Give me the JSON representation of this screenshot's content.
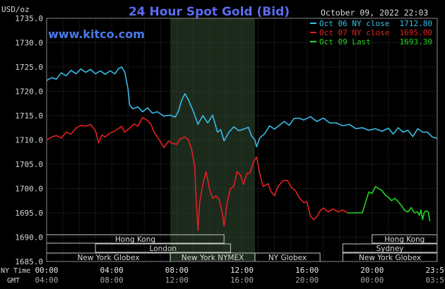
{
  "chart_data": {
    "type": "line",
    "title": "24 Hour Spot Gold (Bid)",
    "unit_label": "USD/oz",
    "timestamp": "October 09, 2022 22:03",
    "watermark": "www.kitco.com",
    "y_ticks": [
      "1735.0",
      "1730.0",
      "1725.0",
      "1720.0",
      "1715.0",
      "1710.0",
      "1705.0",
      "1700.0",
      "1695.0",
      "1690.0",
      "1685.0"
    ],
    "ylim": [
      1685,
      1735
    ],
    "xlim": [
      0,
      24
    ],
    "x_ticks_ny": [
      "00:00",
      "04:00",
      "08:00",
      "12:00",
      "16:00",
      "20:00",
      "23:59"
    ],
    "x_ticks_gmt": [
      "04:00",
      "08:00",
      "12:00",
      "16:00",
      "20:00",
      "00:00",
      "03:59"
    ],
    "x_row_label_ny": "NY Time",
    "x_row_label_gmt": "GMT",
    "shaded_region": [
      7.6,
      12.8
    ],
    "legend": [
      {
        "name": "Oct 06 NY close",
        "value": "1712.80",
        "color": "#38bce8"
      },
      {
        "name": "Oct 07 NY close",
        "value": "1695.00",
        "color": "#e02020"
      },
      {
        "name": "Oct 09 Last",
        "value": "1693.30",
        "color": "#22d622"
      }
    ],
    "series": [
      {
        "name": "Oct 06 NY close",
        "color": "#38bce8",
        "points": [
          [
            0,
            1722.2
          ],
          [
            0.3,
            1722.8
          ],
          [
            0.6,
            1722.5
          ],
          [
            0.9,
            1723.8
          ],
          [
            1.2,
            1723.2
          ],
          [
            1.5,
            1724.3
          ],
          [
            1.8,
            1723.6
          ],
          [
            2.1,
            1724.6
          ],
          [
            2.4,
            1723.9
          ],
          [
            2.7,
            1724.5
          ],
          [
            3.0,
            1723.6
          ],
          [
            3.3,
            1724.2
          ],
          [
            3.6,
            1723.5
          ],
          [
            3.9,
            1724.2
          ],
          [
            4.2,
            1723.6
          ],
          [
            4.4,
            1724.6
          ],
          [
            4.6,
            1725.0
          ],
          [
            4.8,
            1724.0
          ],
          [
            5.0,
            1720.5
          ],
          [
            5.1,
            1717.2
          ],
          [
            5.3,
            1716.4
          ],
          [
            5.6,
            1716.8
          ],
          [
            5.9,
            1715.8
          ],
          [
            6.2,
            1716.6
          ],
          [
            6.5,
            1715.5
          ],
          [
            6.8,
            1715.8
          ],
          [
            7.2,
            1714.9
          ],
          [
            7.6,
            1715.1
          ],
          [
            7.9,
            1714.7
          ],
          [
            8.1,
            1715.9
          ],
          [
            8.3,
            1718.2
          ],
          [
            8.5,
            1719.5
          ],
          [
            8.7,
            1718.3
          ],
          [
            9.0,
            1716.0
          ],
          [
            9.3,
            1713.2
          ],
          [
            9.6,
            1715.0
          ],
          [
            9.9,
            1713.5
          ],
          [
            10.2,
            1715.1
          ],
          [
            10.5,
            1711.6
          ],
          [
            10.7,
            1712.1
          ],
          [
            10.9,
            1709.8
          ],
          [
            11.2,
            1711.6
          ],
          [
            11.5,
            1712.7
          ],
          [
            11.8,
            1711.9
          ],
          [
            12.1,
            1712.2
          ],
          [
            12.4,
            1712.6
          ],
          [
            12.6,
            1710.8
          ],
          [
            12.8,
            1710.0
          ],
          [
            12.9,
            1708.6
          ],
          [
            13.1,
            1710.4
          ],
          [
            13.4,
            1711.3
          ],
          [
            13.7,
            1712.9
          ],
          [
            14.0,
            1712.2
          ],
          [
            14.3,
            1713.0
          ],
          [
            14.6,
            1713.8
          ],
          [
            14.9,
            1713.0
          ],
          [
            15.2,
            1714.4
          ],
          [
            15.5,
            1714.5
          ],
          [
            15.8,
            1714.1
          ],
          [
            16.2,
            1714.8
          ],
          [
            16.6,
            1713.8
          ],
          [
            17.0,
            1714.5
          ],
          [
            17.4,
            1713.5
          ],
          [
            17.8,
            1713.5
          ],
          [
            18.2,
            1712.9
          ],
          [
            18.6,
            1713.2
          ],
          [
            19.0,
            1712.3
          ],
          [
            19.4,
            1712.5
          ],
          [
            19.8,
            1712.0
          ],
          [
            20.2,
            1712.3
          ],
          [
            20.6,
            1711.8
          ],
          [
            21.0,
            1712.4
          ],
          [
            21.3,
            1711.2
          ],
          [
            21.6,
            1712.5
          ],
          [
            21.9,
            1711.6
          ],
          [
            22.2,
            1712.0
          ],
          [
            22.5,
            1710.7
          ],
          [
            22.8,
            1712.3
          ],
          [
            23.1,
            1711.6
          ],
          [
            23.4,
            1711.6
          ],
          [
            23.7,
            1710.6
          ],
          [
            23.99,
            1710.3
          ]
        ]
      },
      {
        "name": "Oct 07 NY close",
        "color": "#e02020",
        "points": [
          [
            0,
            1710.0
          ],
          [
            0.3,
            1710.6
          ],
          [
            0.6,
            1710.9
          ],
          [
            0.9,
            1710.4
          ],
          [
            1.2,
            1711.6
          ],
          [
            1.5,
            1711.2
          ],
          [
            1.8,
            1712.4
          ],
          [
            2.1,
            1713.0
          ],
          [
            2.4,
            1712.8
          ],
          [
            2.7,
            1713.2
          ],
          [
            3.0,
            1711.9
          ],
          [
            3.2,
            1709.4
          ],
          [
            3.4,
            1711.0
          ],
          [
            3.6,
            1710.6
          ],
          [
            3.8,
            1711.2
          ],
          [
            4.1,
            1711.7
          ],
          [
            4.4,
            1712.3
          ],
          [
            4.6,
            1712.8
          ],
          [
            4.8,
            1711.6
          ],
          [
            5.1,
            1712.4
          ],
          [
            5.4,
            1713.3
          ],
          [
            5.6,
            1712.8
          ],
          [
            5.9,
            1714.6
          ],
          [
            6.1,
            1714.2
          ],
          [
            6.4,
            1713.3
          ],
          [
            6.6,
            1711.6
          ],
          [
            6.8,
            1710.6
          ],
          [
            7.0,
            1709.6
          ],
          [
            7.2,
            1708.4
          ],
          [
            7.5,
            1709.8
          ],
          [
            7.7,
            1709.3
          ],
          [
            8.0,
            1709.1
          ],
          [
            8.2,
            1710.2
          ],
          [
            8.5,
            1710.6
          ],
          [
            8.7,
            1710.1
          ],
          [
            8.9,
            1708.2
          ],
          [
            9.1,
            1704.5
          ],
          [
            9.2,
            1697.0
          ],
          [
            9.3,
            1691.4
          ],
          [
            9.4,
            1697.0
          ],
          [
            9.6,
            1701.0
          ],
          [
            9.8,
            1703.5
          ],
          [
            10.0,
            1700.0
          ],
          [
            10.2,
            1698.0
          ],
          [
            10.4,
            1698.5
          ],
          [
            10.6,
            1697.8
          ],
          [
            10.8,
            1694.9
          ],
          [
            10.9,
            1692.3
          ],
          [
            11.1,
            1697.3
          ],
          [
            11.3,
            1700.0
          ],
          [
            11.5,
            1700.5
          ],
          [
            11.7,
            1703.5
          ],
          [
            11.9,
            1702.8
          ],
          [
            12.1,
            1700.9
          ],
          [
            12.3,
            1703.1
          ],
          [
            12.5,
            1703.2
          ],
          [
            12.7,
            1705.4
          ],
          [
            12.9,
            1706.5
          ],
          [
            13.1,
            1703.0
          ],
          [
            13.3,
            1700.4
          ],
          [
            13.6,
            1701.0
          ],
          [
            13.8,
            1699.3
          ],
          [
            14.0,
            1698.5
          ],
          [
            14.2,
            1700.3
          ],
          [
            14.5,
            1701.6
          ],
          [
            14.8,
            1701.7
          ],
          [
            15.0,
            1700.4
          ],
          [
            15.3,
            1699.5
          ],
          [
            15.5,
            1698.2
          ],
          [
            15.8,
            1697.1
          ],
          [
            16.0,
            1697.3
          ],
          [
            16.2,
            1694.4
          ],
          [
            16.4,
            1693.6
          ],
          [
            16.6,
            1694.2
          ],
          [
            16.8,
            1695.4
          ],
          [
            17.0,
            1696.0
          ],
          [
            17.3,
            1695.2
          ],
          [
            17.6,
            1695.8
          ],
          [
            17.9,
            1695.2
          ],
          [
            18.2,
            1695.6
          ],
          [
            18.5,
            1695.0
          ]
        ]
      },
      {
        "name": "Oct 09 Last",
        "color": "#22d622",
        "points": [
          [
            18.5,
            1695.0
          ],
          [
            19.4,
            1695.0
          ],
          [
            19.6,
            1697.2
          ],
          [
            19.8,
            1699.3
          ],
          [
            20.0,
            1699.0
          ],
          [
            20.2,
            1700.4
          ],
          [
            20.4,
            1700.0
          ],
          [
            20.6,
            1699.6
          ],
          [
            20.8,
            1698.7
          ],
          [
            21.0,
            1698.2
          ],
          [
            21.2,
            1697.5
          ],
          [
            21.4,
            1698.0
          ],
          [
            21.6,
            1697.3
          ],
          [
            21.8,
            1696.5
          ],
          [
            22.0,
            1695.5
          ],
          [
            22.2,
            1695.2
          ],
          [
            22.4,
            1696.1
          ],
          [
            22.6,
            1695.0
          ],
          [
            22.8,
            1695.2
          ],
          [
            22.9,
            1694.5
          ],
          [
            23.0,
            1695.6
          ],
          [
            23.1,
            1693.6
          ],
          [
            23.2,
            1695.1
          ],
          [
            23.3,
            1695.4
          ],
          [
            23.45,
            1695.2
          ],
          [
            23.55,
            1693.3
          ]
        ]
      }
    ],
    "sessions": [
      {
        "label": "Hong Kong",
        "start": 0,
        "end": 10.9,
        "row": 0
      },
      {
        "label": "Hong Kong",
        "start": 20.0,
        "end": 23.99,
        "row": 0
      },
      {
        "label": "London",
        "start": 3.0,
        "end": 11.3,
        "row": 1
      },
      {
        "label": "Sydney",
        "start": 18.2,
        "end": 23.99,
        "row": 1
      },
      {
        "label": "New York Globex",
        "start": 0,
        "end": 7.6,
        "row": 2
      },
      {
        "label": "New York NYMEX",
        "start": 7.6,
        "end": 12.8,
        "row": 2
      },
      {
        "label": "NY Globex",
        "start": 12.8,
        "end": 16.8,
        "row": 2
      },
      {
        "label": "New York Globex",
        "start": 18.2,
        "end": 23.99,
        "row": 2
      }
    ]
  }
}
